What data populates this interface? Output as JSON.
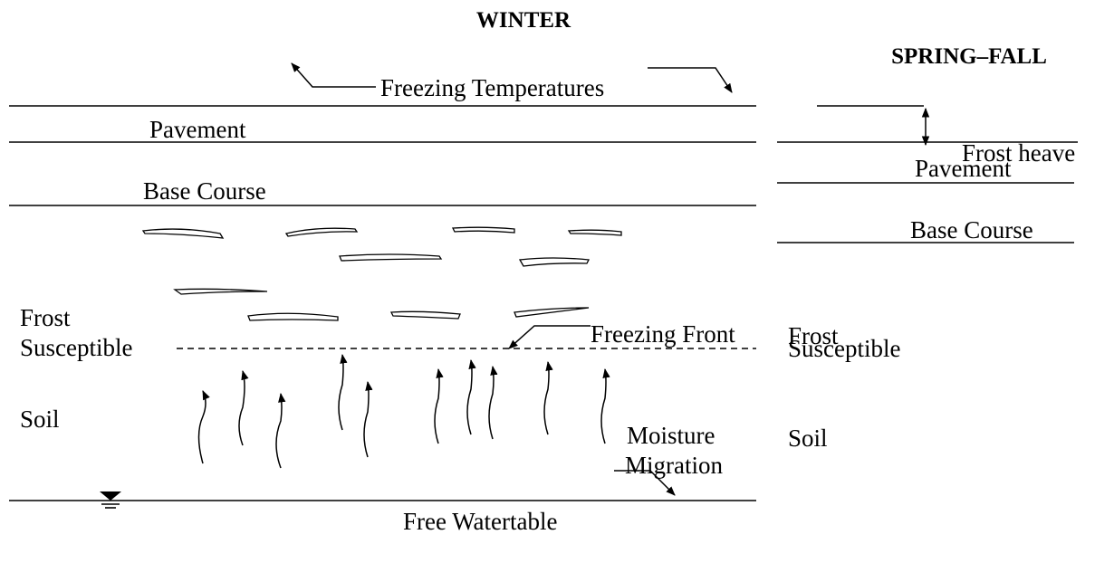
{
  "winter": {
    "title": "WINTER",
    "freezing_temperatures": "Freezing Temperatures",
    "pavement": "Pavement",
    "base_course": "Base Course",
    "soil_label": [
      "Frost",
      "Susceptible",
      "Soil"
    ],
    "freezing_front": "Freezing Front",
    "moisture_migration": [
      "Moisture",
      "Migration"
    ],
    "watertable": "Free Watertable"
  },
  "spring_fall": {
    "title": "SPRING–FALL",
    "frost_heave": "Frost heave",
    "pavement": "Pavement",
    "base_course": "Base Course",
    "soil_label": [
      "Frost",
      "Susceptible",
      "Soil"
    ]
  }
}
